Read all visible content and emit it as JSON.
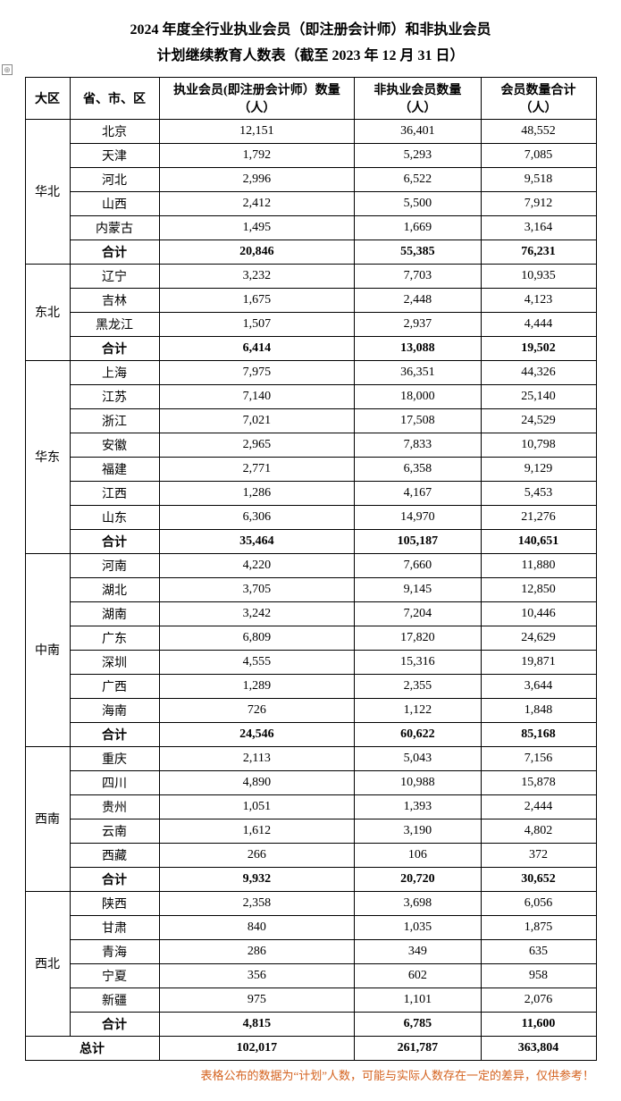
{
  "title_line1": "2024 年度全行业执业会员（即注册会计师）和非执业会员",
  "title_line2": "计划继续教育人数表（截至 2023 年 12 月 31 日）",
  "headers": {
    "region": "大区",
    "province": "省、市、区",
    "practicing": "执业会员(即注册会计师）数量（人）",
    "nonpracticing": "非执业会员数量（人）",
    "total": "会员数量合计（人）"
  },
  "regions": [
    {
      "name": "华北",
      "rows": [
        {
          "province": "北京",
          "a": "12,151",
          "b": "36,401",
          "c": "48,552"
        },
        {
          "province": "天津",
          "a": "1,792",
          "b": "5,293",
          "c": "7,085"
        },
        {
          "province": "河北",
          "a": "2,996",
          "b": "6,522",
          "c": "9,518"
        },
        {
          "province": "山西",
          "a": "2,412",
          "b": "5,500",
          "c": "7,912"
        },
        {
          "province": "内蒙古",
          "a": "1,495",
          "b": "1,669",
          "c": "3,164"
        }
      ],
      "subtotal": {
        "label": "合计",
        "a": "20,846",
        "b": "55,385",
        "c": "76,231"
      }
    },
    {
      "name": "东北",
      "rows": [
        {
          "province": "辽宁",
          "a": "3,232",
          "b": "7,703",
          "c": "10,935"
        },
        {
          "province": "吉林",
          "a": "1,675",
          "b": "2,448",
          "c": "4,123"
        },
        {
          "province": "黑龙江",
          "a": "1,507",
          "b": "2,937",
          "c": "4,444"
        }
      ],
      "subtotal": {
        "label": "合计",
        "a": "6,414",
        "b": "13,088",
        "c": "19,502"
      }
    },
    {
      "name": "华东",
      "rows": [
        {
          "province": "上海",
          "a": "7,975",
          "b": "36,351",
          "c": "44,326"
        },
        {
          "province": "江苏",
          "a": "7,140",
          "b": "18,000",
          "c": "25,140"
        },
        {
          "province": "浙江",
          "a": "7,021",
          "b": "17,508",
          "c": "24,529"
        },
        {
          "province": "安徽",
          "a": "2,965",
          "b": "7,833",
          "c": "10,798"
        },
        {
          "province": "福建",
          "a": "2,771",
          "b": "6,358",
          "c": "9,129"
        },
        {
          "province": "江西",
          "a": "1,286",
          "b": "4,167",
          "c": "5,453"
        },
        {
          "province": "山东",
          "a": "6,306",
          "b": "14,970",
          "c": "21,276"
        }
      ],
      "subtotal": {
        "label": "合计",
        "a": "35,464",
        "b": "105,187",
        "c": "140,651"
      }
    },
    {
      "name": "中南",
      "rows": [
        {
          "province": "河南",
          "a": "4,220",
          "b": "7,660",
          "c": "11,880"
        },
        {
          "province": "湖北",
          "a": "3,705",
          "b": "9,145",
          "c": "12,850"
        },
        {
          "province": "湖南",
          "a": "3,242",
          "b": "7,204",
          "c": "10,446"
        },
        {
          "province": "广东",
          "a": "6,809",
          "b": "17,820",
          "c": "24,629"
        },
        {
          "province": "深圳",
          "a": "4,555",
          "b": "15,316",
          "c": "19,871"
        },
        {
          "province": "广西",
          "a": "1,289",
          "b": "2,355",
          "c": "3,644"
        },
        {
          "province": "海南",
          "a": "726",
          "b": "1,122",
          "c": "1,848"
        }
      ],
      "subtotal": {
        "label": "合计",
        "a": "24,546",
        "b": "60,622",
        "c": "85,168"
      }
    },
    {
      "name": "西南",
      "rows": [
        {
          "province": "重庆",
          "a": "2,113",
          "b": "5,043",
          "c": "7,156"
        },
        {
          "province": "四川",
          "a": "4,890",
          "b": "10,988",
          "c": "15,878"
        },
        {
          "province": "贵州",
          "a": "1,051",
          "b": "1,393",
          "c": "2,444"
        },
        {
          "province": "云南",
          "a": "1,612",
          "b": "3,190",
          "c": "4,802"
        },
        {
          "province": "西藏",
          "a": "266",
          "b": "106",
          "c": "372"
        }
      ],
      "subtotal": {
        "label": "合计",
        "a": "9,932",
        "b": "20,720",
        "c": "30,652"
      }
    },
    {
      "name": "西北",
      "rows": [
        {
          "province": "陕西",
          "a": "2,358",
          "b": "3,698",
          "c": "6,056"
        },
        {
          "province": "甘肃",
          "a": "840",
          "b": "1,035",
          "c": "1,875"
        },
        {
          "province": "青海",
          "a": "286",
          "b": "349",
          "c": "635"
        },
        {
          "province": "宁夏",
          "a": "356",
          "b": "602",
          "c": "958"
        },
        {
          "province": "新疆",
          "a": "975",
          "b": "1,101",
          "c": "2,076"
        }
      ],
      "subtotal": {
        "label": "合计",
        "a": "4,815",
        "b": "6,785",
        "c": "11,600"
      }
    }
  ],
  "grand_total": {
    "label": "总计",
    "a": "102,017",
    "b": "261,787",
    "c": "363,804"
  },
  "footnote": "表格公布的数据为“计划”人数，可能与实际人数存在一定的差异，仅供参考！",
  "marker_glyph": "⊕"
}
